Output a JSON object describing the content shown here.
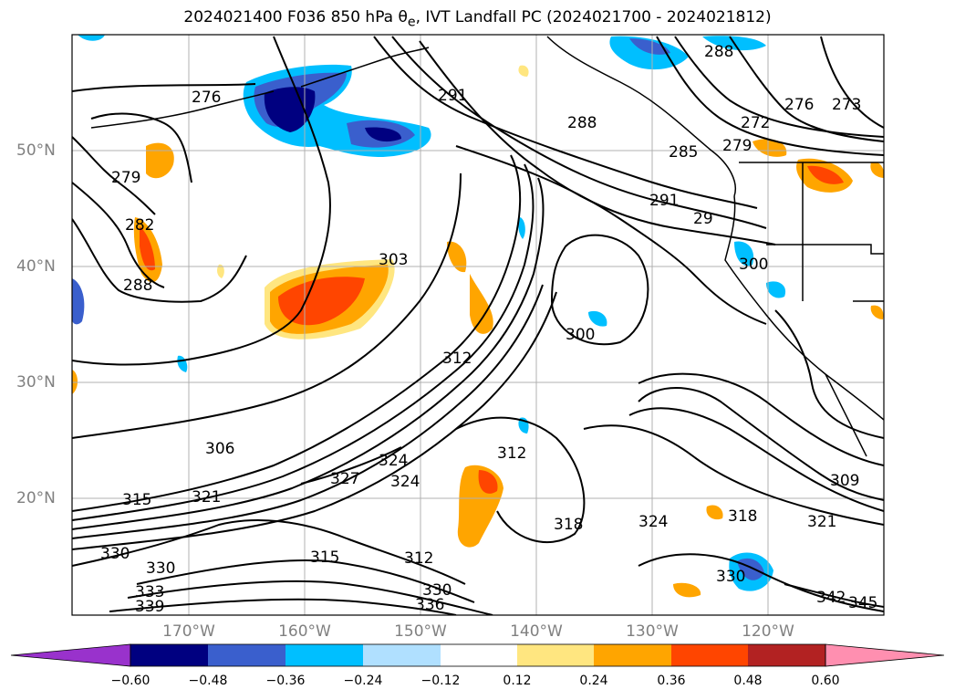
{
  "title": {
    "prefix": "2024021400 F036 850 hPa θ",
    "subscript": "e",
    "suffix": ", IVT Landfall PC (2024021700 - 2024021812)"
  },
  "map": {
    "lat_labels": [
      "50°N",
      "40°N",
      "30°N",
      "20°N"
    ],
    "lon_labels": [
      "170°W",
      "160°W",
      "150°W",
      "140°W",
      "130°W",
      "120°W"
    ],
    "contour_labels": [
      "276",
      "279",
      "282",
      "288",
      "303",
      "291",
      "288",
      "288",
      "285",
      "279",
      "272",
      "276",
      "273",
      "291",
      "29",
      "300",
      "300",
      "312",
      "306",
      "315",
      "321",
      "327",
      "324",
      "324",
      "312",
      "318",
      "324",
      "318",
      "309",
      "321",
      "330",
      "330",
      "333",
      "339",
      "315",
      "312",
      "330",
      "336",
      "342",
      "345",
      "330"
    ],
    "colors": {
      "coast": "#000000",
      "grid": "#b0b0b0",
      "neg_strong": "#000080",
      "neg_mid": "#3355cc",
      "neg_light": "#00bfff",
      "pos_light": "#ffe680",
      "pos_mid": "#ffa500",
      "pos_strong": "#ff4500"
    }
  },
  "colorbar": {
    "ticks": [
      "−0.60",
      "−0.48",
      "−0.36",
      "−0.24",
      "−0.12",
      "0.12",
      "0.24",
      "0.36",
      "0.48",
      "0.60"
    ],
    "colors": [
      "#9932cc",
      "#000080",
      "#3a5fcd",
      "#00bfff",
      "#b0e0ff",
      "#ffffff",
      "#ffe680",
      "#ffa500",
      "#ff4500",
      "#b22222",
      "#ff8fb0"
    ]
  }
}
